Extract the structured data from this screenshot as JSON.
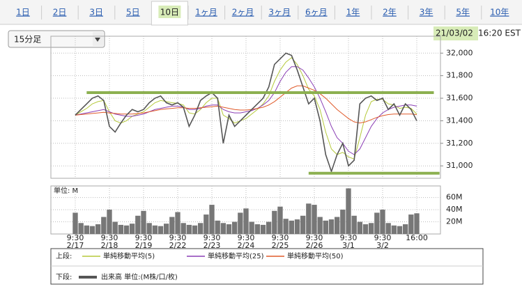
{
  "tabs": [
    "1日",
    "2日",
    "3日",
    "5日",
    "10日",
    "1ヶ月",
    "2ヶ月",
    "3ヶ月",
    "6ヶ月",
    "1年",
    "2年",
    "3年",
    "5年",
    "10年"
  ],
  "selected_tab": 4,
  "dropdown": "15分足",
  "timestamp": {
    "date": "21/03/02",
    "time": "16:20 EST"
  },
  "chart_data": {
    "type": "line",
    "categories": [
      "9:30 2/17",
      null,
      null,
      null,
      null,
      null,
      "9:30 2/18",
      null,
      null,
      null,
      null,
      null,
      "9:30 2/19",
      null,
      null,
      null,
      null,
      null,
      "9:30 2/22",
      null,
      null,
      null,
      null,
      null,
      "9:30 2/23",
      null,
      null,
      null,
      null,
      null,
      "9:30 2/24",
      null,
      null,
      null,
      null,
      null,
      "9:30 2/25",
      null,
      null,
      null,
      null,
      null,
      "9:30 2/26",
      null,
      null,
      null,
      null,
      null,
      "9:30 3/1",
      null,
      null,
      null,
      null,
      null,
      "9:30 3/2",
      null,
      null,
      null,
      null,
      null,
      "16:00"
    ],
    "price": {
      "color": "#555555",
      "values": [
        31450,
        31500,
        31550,
        31600,
        31620,
        31580,
        31350,
        31300,
        31380,
        31450,
        31500,
        31480,
        31500,
        31560,
        31600,
        31620,
        31560,
        31540,
        31560,
        31520,
        31350,
        31450,
        31580,
        31620,
        31650,
        31600,
        31200,
        31450,
        31350,
        31400,
        31450,
        31500,
        31550,
        31600,
        31700,
        31900,
        31950,
        32000,
        31980,
        31850,
        31700,
        31550,
        31600,
        31400,
        31100,
        30950,
        31100,
        31200,
        31000,
        31050,
        31550,
        31600,
        31620,
        31580,
        31600,
        31500,
        31550,
        31450,
        31550,
        31500,
        31400
      ]
    },
    "series": [
      {
        "name": "単純移動平均(5)",
        "color": "#b5c93a",
        "values": [
          31450,
          31480,
          31510,
          31550,
          31570,
          31580,
          31480,
          31400,
          31380,
          31400,
          31440,
          31460,
          31480,
          31520,
          31560,
          31580,
          31570,
          31560,
          31555,
          31540,
          31470,
          31460,
          31500,
          31560,
          31600,
          31600,
          31450,
          31420,
          31380,
          31400,
          31420,
          31460,
          31500,
          31550,
          31620,
          31750,
          31850,
          31920,
          31960,
          31900,
          31800,
          31680,
          31620,
          31500,
          31300,
          31150,
          31100,
          31120,
          31080,
          31060,
          31250,
          31450,
          31570,
          31590,
          31590,
          31550,
          31540,
          31510,
          31520,
          31510,
          31460
        ]
      },
      {
        "name": "単純移動平均(25)",
        "color": "#8b3fb5",
        "values": [
          31450,
          31460,
          31470,
          31480,
          31490,
          31500,
          31480,
          31460,
          31450,
          31440,
          31440,
          31450,
          31460,
          31480,
          31500,
          31510,
          31520,
          31530,
          31530,
          31520,
          31500,
          31500,
          31510,
          31530,
          31540,
          31540,
          31500,
          31480,
          31470,
          31470,
          31480,
          31490,
          31510,
          31540,
          31580,
          31650,
          31750,
          31830,
          31880,
          31880,
          31850,
          31780,
          31700,
          31600,
          31480,
          31350,
          31250,
          31200,
          31130,
          31100,
          31150,
          31250,
          31350,
          31420,
          31470,
          31500,
          31520,
          31530,
          31540,
          31540,
          31530
        ]
      },
      {
        "name": "単純移動平均(50)",
        "color": "#e05a2a",
        "values": [
          31450,
          31455,
          31460,
          31465,
          31470,
          31475,
          31470,
          31465,
          31460,
          31460,
          31460,
          31465,
          31470,
          31480,
          31490,
          31500,
          31505,
          31510,
          31515,
          31515,
          31510,
          31510,
          31515,
          31520,
          31525,
          31530,
          31520,
          31510,
          31500,
          31495,
          31495,
          31500,
          31510,
          31520,
          31540,
          31570,
          31610,
          31650,
          31690,
          31710,
          31710,
          31690,
          31670,
          31640,
          31600,
          31550,
          31500,
          31460,
          31420,
          31390,
          31380,
          31390,
          31410,
          31430,
          31445,
          31455,
          31460,
          31460,
          31460,
          31460,
          31455
        ]
      }
    ],
    "ylim": [
      30890,
      32150
    ],
    "yticks": [
      {
        "value": 31000,
        "label": "31,000"
      },
      {
        "value": 31200,
        "label": "31,200"
      },
      {
        "value": 31400,
        "label": "31,400"
      },
      {
        "value": 31600,
        "label": "31,600"
      },
      {
        "value": 31800,
        "label": "31,800"
      },
      {
        "value": 32000,
        "label": "32,000"
      }
    ],
    "levels": [
      {
        "value": 31650,
        "from": 2,
        "to": 63,
        "color": "#8cb050"
      },
      {
        "value": 30935,
        "from": 41,
        "to": 64,
        "color": "#8cb050"
      }
    ],
    "volume": {
      "unit_label": "単位: M",
      "name": "出来高 単位:(M株/口/枚)",
      "color": "#777777",
      "values": [
        35,
        18,
        14,
        13,
        16,
        28,
        40,
        20,
        15,
        14,
        17,
        30,
        38,
        18,
        14,
        13,
        17,
        28,
        36,
        18,
        15,
        14,
        18,
        32,
        48,
        22,
        18,
        16,
        20,
        35,
        42,
        20,
        16,
        15,
        20,
        38,
        45,
        25,
        22,
        24,
        30,
        50,
        48,
        28,
        22,
        24,
        28,
        40,
        75,
        30,
        20,
        16,
        18,
        35,
        40,
        18,
        14,
        13,
        16,
        32,
        34
      ],
      "ylim": [
        0,
        79
      ],
      "yticks": [
        {
          "value": 20,
          "label": "20M"
        },
        {
          "value": 40,
          "label": "40M"
        },
        {
          "value": 60,
          "label": "60M"
        }
      ]
    },
    "legend": {
      "upper": "上段:",
      "lower": "下段:"
    }
  }
}
